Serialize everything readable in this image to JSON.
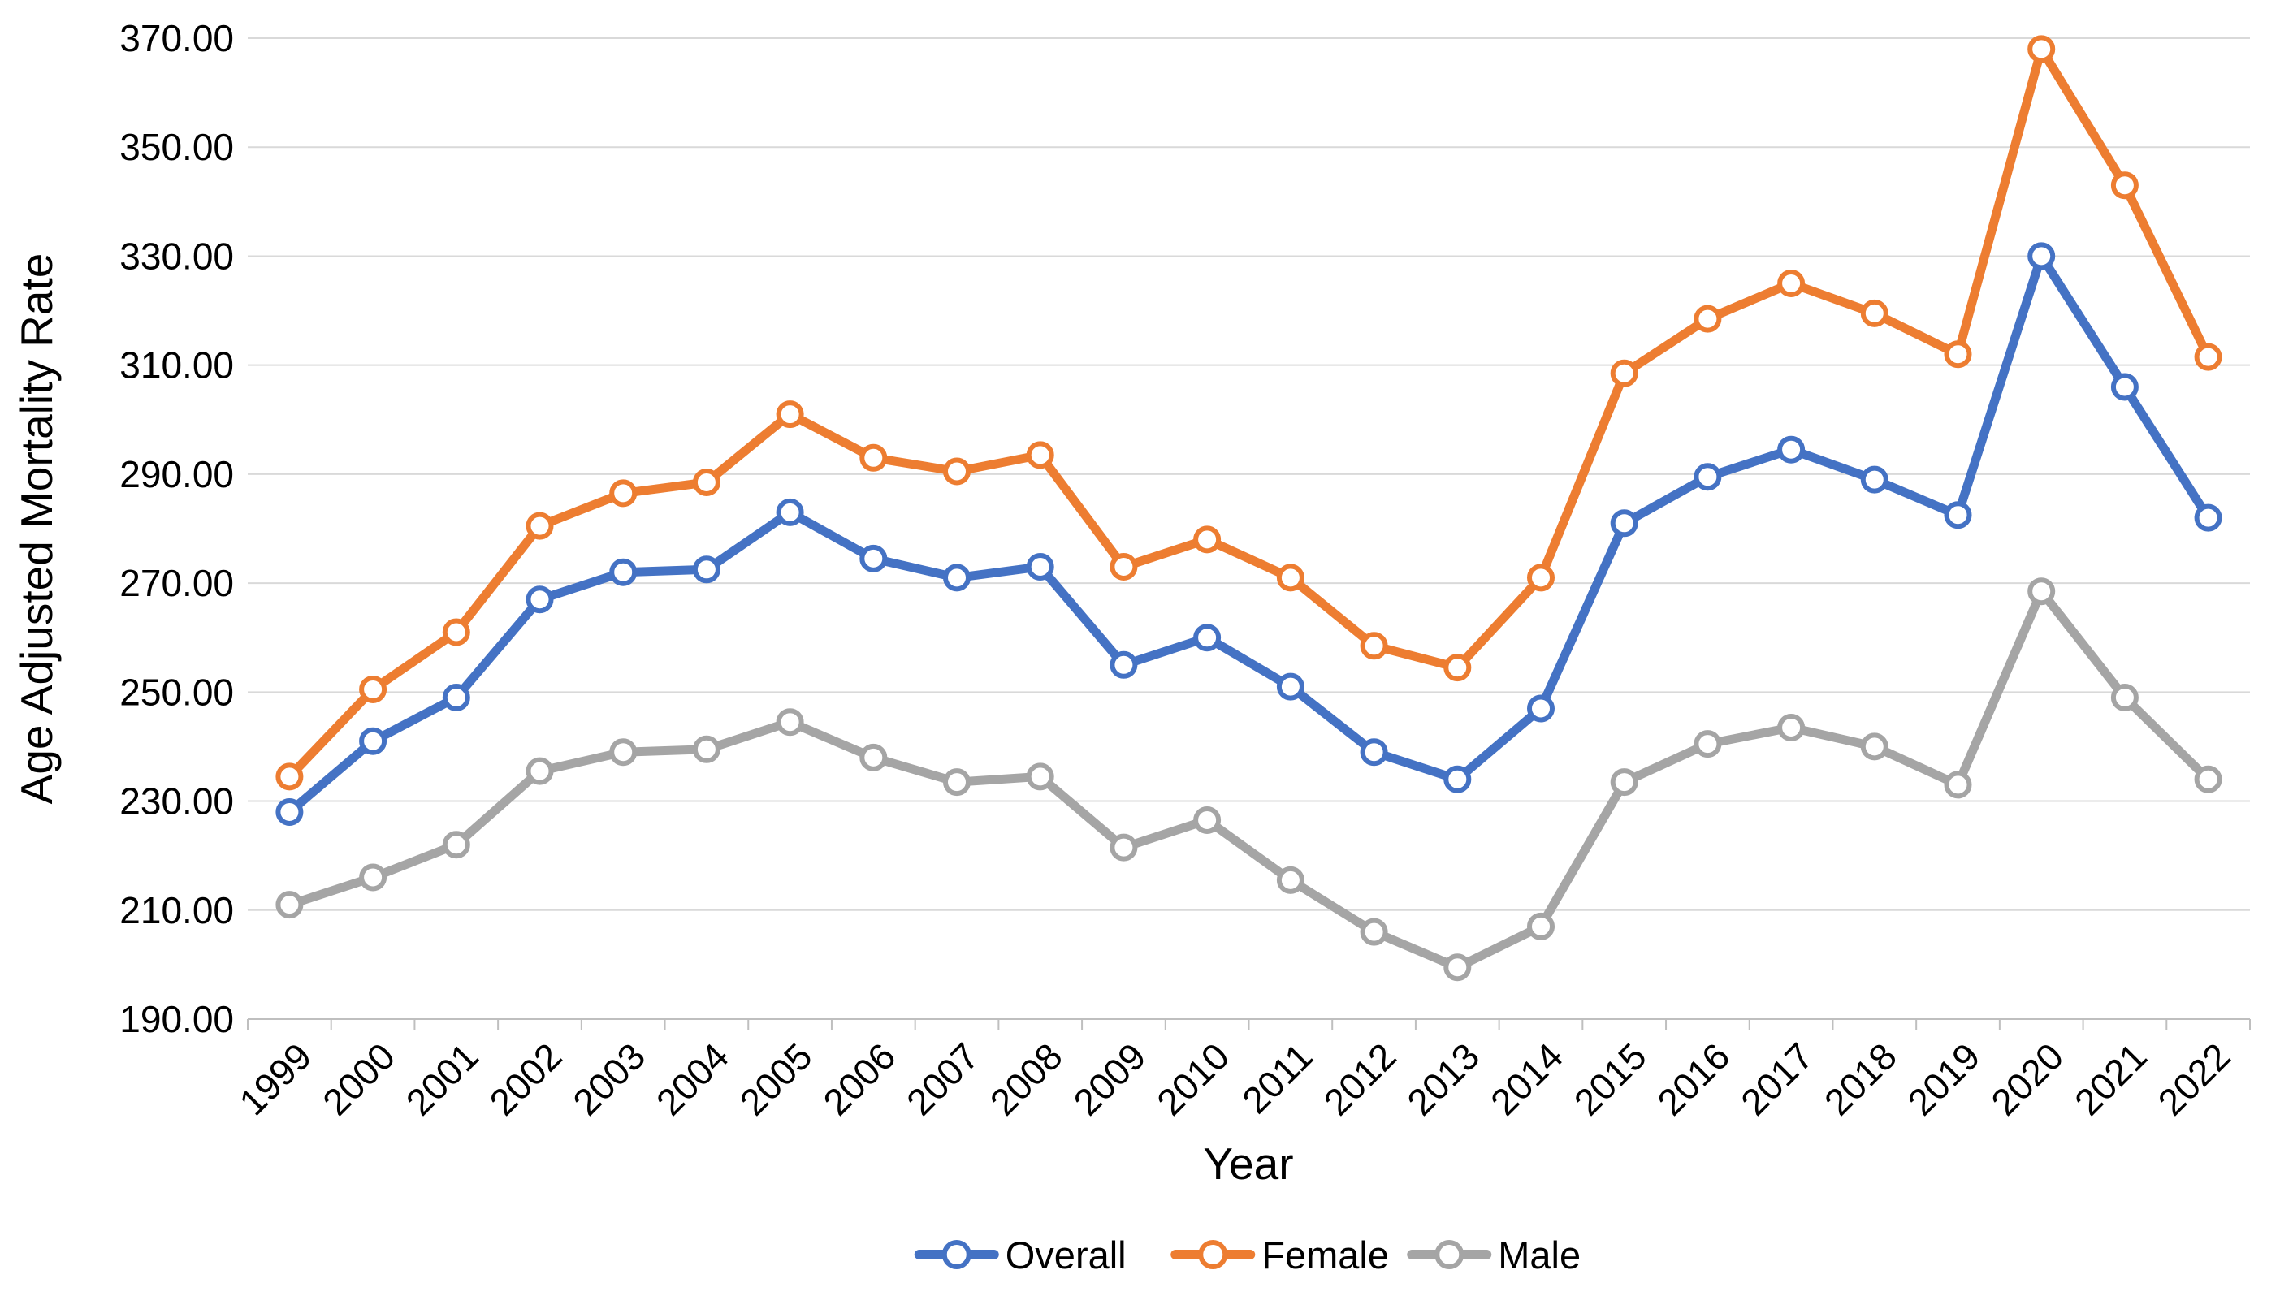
{
  "chart_data": {
    "type": "line",
    "title": "",
    "xlabel": "Year",
    "ylabel": "Age Adjusted Mortality Rate",
    "x": [
      "1999",
      "2000",
      "2001",
      "2002",
      "2003",
      "2004",
      "2005",
      "2006",
      "2007",
      "2008",
      "2009",
      "2010",
      "2011",
      "2012",
      "2013",
      "2014",
      "2015",
      "2016",
      "2017",
      "2018",
      "2019",
      "2020",
      "2021",
      "2022"
    ],
    "series": [
      {
        "name": "Overall",
        "color": "#4472C4",
        "values": [
          228,
          241,
          249,
          267,
          272,
          272.5,
          283,
          274.5,
          271,
          273,
          255,
          260,
          251,
          239,
          234,
          247,
          281,
          289.5,
          294.5,
          289,
          282.5,
          330,
          306,
          282
        ]
      },
      {
        "name": "Female",
        "color": "#ED7D31",
        "values": [
          234.5,
          250.5,
          261,
          280.5,
          286.5,
          288.5,
          301,
          293,
          290.5,
          293.5,
          273,
          278,
          271,
          258.5,
          254.5,
          271,
          308.5,
          318.5,
          325,
          319.5,
          312,
          368,
          343,
          311.5
        ]
      },
      {
        "name": "Male",
        "color": "#A5A5A5",
        "values": [
          211,
          216,
          222,
          235.5,
          239,
          239.5,
          244.5,
          238,
          233.5,
          234.5,
          221.5,
          226.5,
          215.5,
          206,
          199.5,
          207,
          233.5,
          240.5,
          243.5,
          240,
          233,
          268.5,
          249,
          234
        ]
      }
    ],
    "ylim": [
      190,
      370
    ],
    "ytick_step": 20,
    "y_ticks": [
      "190.00",
      "210.00",
      "230.00",
      "250.00",
      "270.00",
      "290.00",
      "310.00",
      "330.00",
      "350.00",
      "370.00"
    ],
    "grid": "horizontal-only",
    "gridline_color": "#D9D9D9",
    "axis_line_color": "#BFBFBF",
    "marker_style": "open-circle",
    "x_tick_rotation": -45,
    "legend_position": "bottom"
  }
}
